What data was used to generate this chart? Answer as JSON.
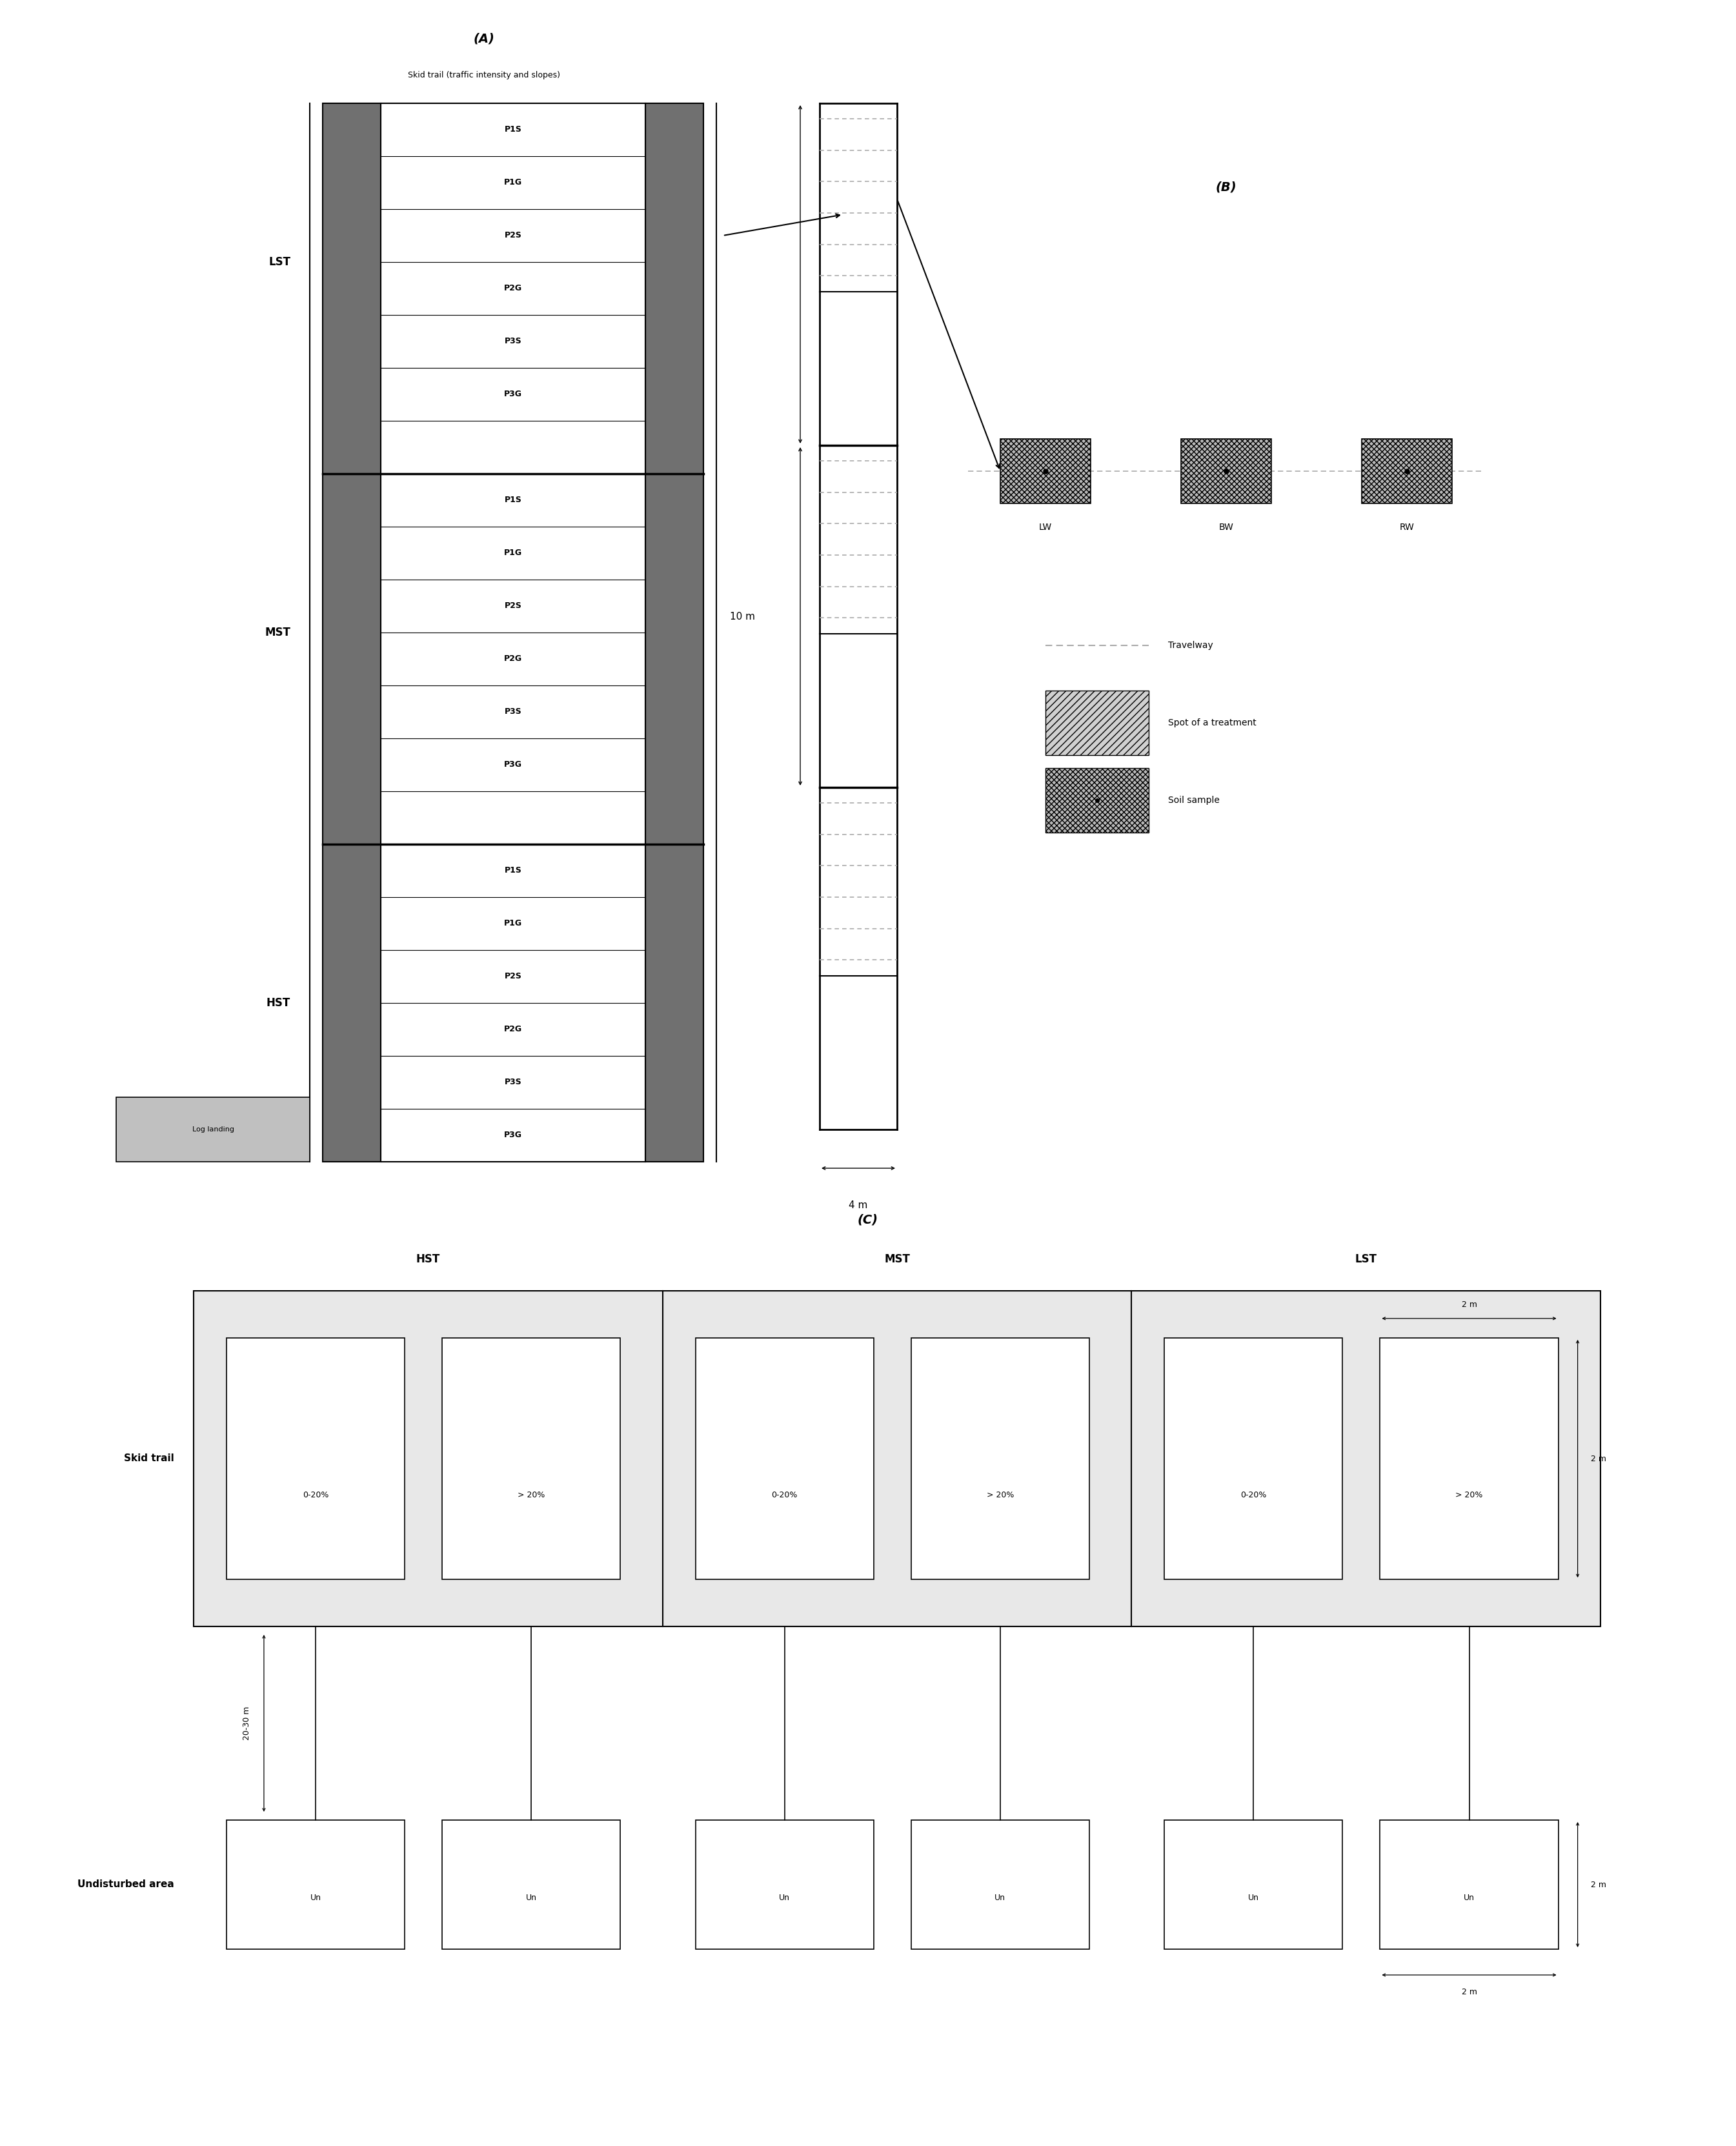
{
  "fig_width": 26.9,
  "fig_height": 33.25,
  "bg_color": "#ffffff",
  "panel_A_label": "(A)",
  "panel_B_label": "(B)",
  "panel_C_label": "(C)",
  "skid_trail_label": "Skid trail (traffic intensity and slopes)",
  "LST_label": "LST",
  "MST_label": "MST",
  "HST_label": "HST",
  "log_landing_label": "Log landing",
  "plot_labels_LST": [
    "P1S",
    "P1G",
    "P2S",
    "P2G",
    "P3S",
    "P3G"
  ],
  "plot_labels_MST": [
    "P1S",
    "P1G",
    "P2S",
    "P2G",
    "P3S",
    "P3G"
  ],
  "plot_labels_HST": [
    "P1S",
    "P1G",
    "P2S",
    "P2G",
    "P3S",
    "P3G"
  ],
  "B_labels": [
    "LW",
    "BW",
    "RW"
  ],
  "travelway_label": "Travelway",
  "spot_label": "Spot of a treatment",
  "soil_sample_label": "Soil sample",
  "dim_10m": "10 m",
  "dim_4m": "4 m",
  "C_HST_label": "HST",
  "C_MST_label": "MST",
  "C_LST_label": "LST",
  "skid_trail_row_label": "Skid trail",
  "undisturbed_label": "Undisturbed area",
  "slope_labels": [
    "0-20%",
    "> 20%",
    "0-20%",
    "> 20%",
    "0-20%",
    "> 20%"
  ],
  "un_labels": [
    "Un",
    "Un",
    "Un",
    "Un",
    "Un",
    "Un"
  ],
  "dim_20_30m": "20-30 m",
  "dim_2m_top": "2 m",
  "dim_2m_right": "2 m",
  "dim_2m_bottom": "2 m",
  "dim_2m_right2": "2 m",
  "gray_dark": "#707070",
  "gray_medium": "#aaaaaa",
  "gray_light": "#d0d0d0",
  "gray_box": "#b8b8b8",
  "gray_hatched": "#d0d0d0",
  "gray_landing": "#c0c0c0",
  "gray_section_bg": "#e8e8e8"
}
